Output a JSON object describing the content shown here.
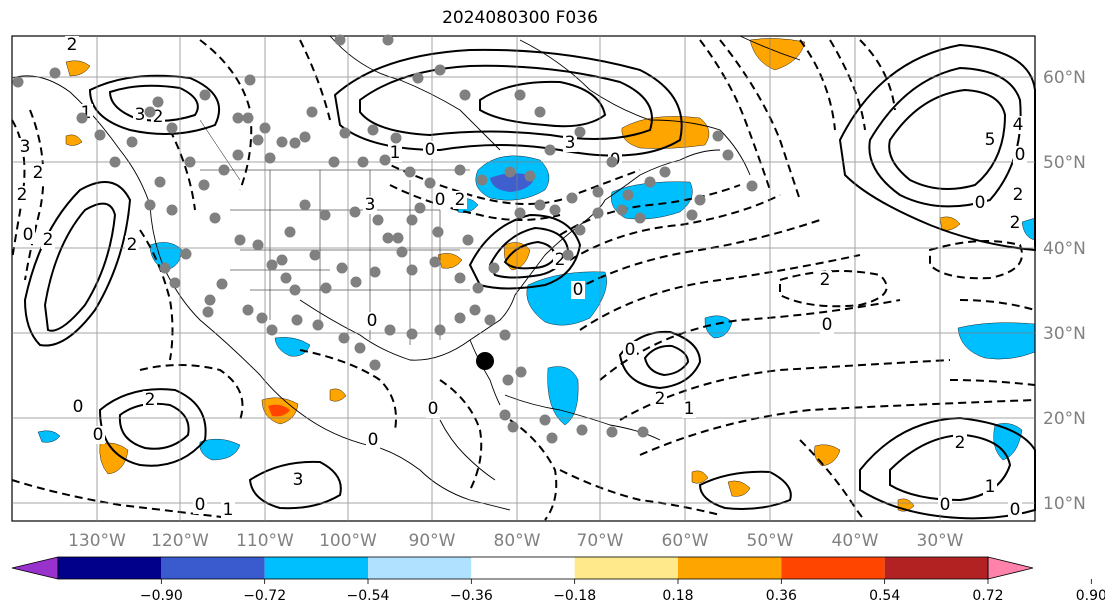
{
  "title": "2024080300 F036",
  "map": {
    "lon_labels": [
      "130°W",
      "120°W",
      "110°W",
      "100°W",
      "90°W",
      "80°W",
      "70°W",
      "60°W",
      "50°W",
      "40°W",
      "30°W"
    ],
    "lat_labels": [
      "60°N",
      "50°N",
      "40°N",
      "30°N",
      "20°N",
      "10°N"
    ],
    "contour_labels": [
      "2",
      "3",
      "2",
      "2",
      "0",
      "3",
      "1",
      "2",
      "2",
      "3",
      "1",
      "0",
      "2",
      "5",
      "4",
      "0",
      "2",
      "2",
      "0",
      "2",
      "0",
      "0",
      "2",
      "1",
      "0",
      "0",
      "0",
      "2",
      "0",
      "1",
      "0",
      "0",
      "2",
      "0",
      "3",
      "2",
      "3",
      "0",
      "0",
      "2",
      "0",
      "1",
      "0"
    ],
    "colors": {
      "positive_orange": "#ffa500",
      "positive_red": "#ff4500",
      "negative_cyan": "#00bfff",
      "negative_blue": "#3f5fcf",
      "station_marker": "#808080",
      "storm_marker": "#000000"
    }
  },
  "colorbar": {
    "ticks": [
      "−0.90",
      "−0.72",
      "−0.54",
      "−0.36",
      "−0.18",
      "0.18",
      "0.36",
      "0.54",
      "0.72",
      "0.90"
    ],
    "colors": [
      "#9932cc",
      "#00008b",
      "#3a5bcd",
      "#00bfff",
      "#b0e2ff",
      "#ffffff",
      "#ffe98a",
      "#ffa500",
      "#ff4500",
      "#b22222",
      "#ff82ab"
    ]
  }
}
